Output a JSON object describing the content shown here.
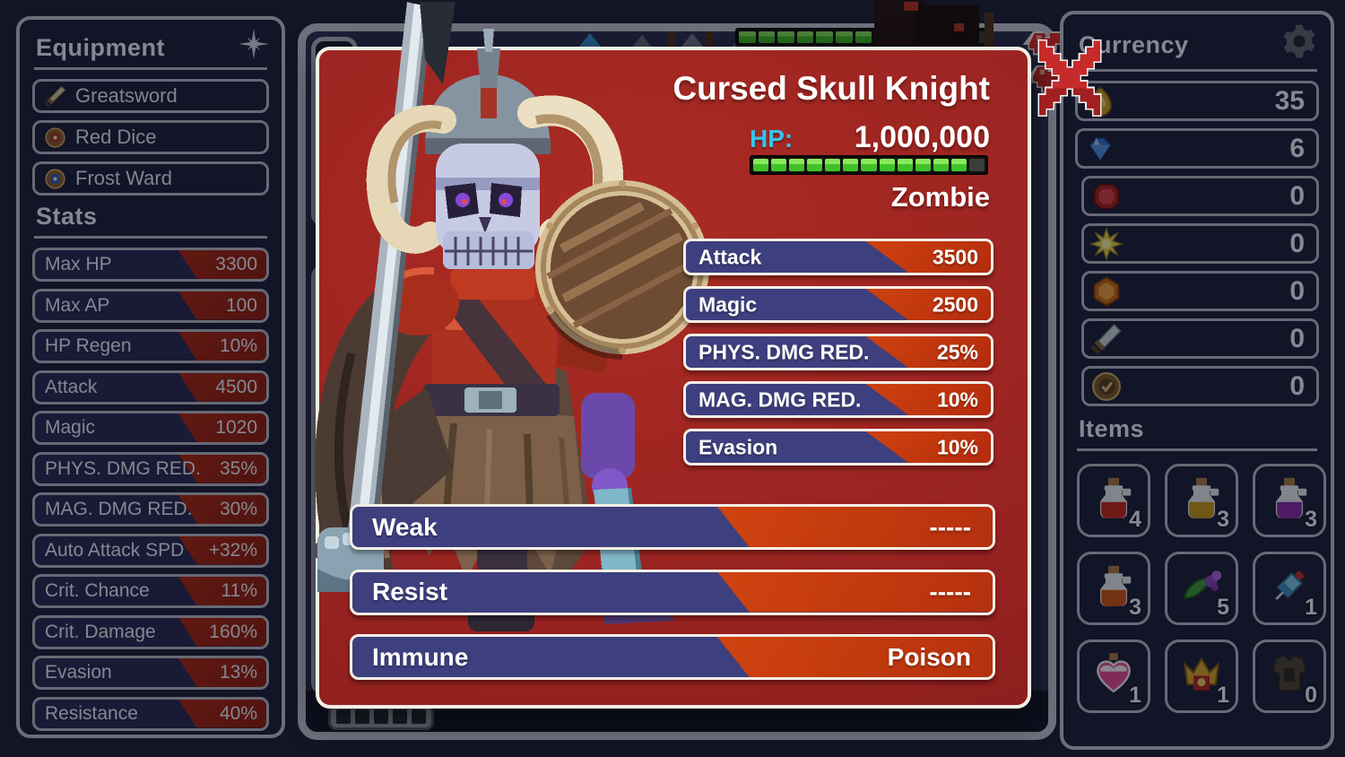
{
  "left_panel": {
    "equipment_title": "Equipment",
    "equipment_icon": "compass-star-icon",
    "equipment": [
      {
        "icon": "greatsword-icon",
        "label": "Greatsword"
      },
      {
        "icon": "red-dice-icon",
        "label": "Red Dice"
      },
      {
        "icon": "frost-ward-icon",
        "label": "Frost Ward"
      }
    ],
    "stats_title": "Stats",
    "stats": [
      {
        "label": "Max HP",
        "value": "3300"
      },
      {
        "label": "Max AP",
        "value": "100"
      },
      {
        "label": "HP Regen",
        "value": "10%"
      },
      {
        "label": "Attack",
        "value": "4500"
      },
      {
        "label": "Magic",
        "value": "1020"
      },
      {
        "label": "PHYS. DMG RED.",
        "value": "35%"
      },
      {
        "label": "MAG. DMG RED.",
        "value": "30%"
      },
      {
        "label": "Auto Attack SPD",
        "value": "+32%"
      },
      {
        "label": "Crit. Chance",
        "value": "11%"
      },
      {
        "label": "Crit. Damage",
        "value": "160%"
      },
      {
        "label": "Evasion",
        "value": "13%"
      },
      {
        "label": "Resistance",
        "value": "40%"
      }
    ]
  },
  "modal": {
    "title": "Cursed Skull Knight",
    "hp_label": "HP:",
    "hp_value": "1,000,000",
    "hp_segments": 13,
    "hp_filled": 12,
    "type": "Zombie",
    "stats": [
      {
        "label": "Attack",
        "value": "3500"
      },
      {
        "label": "Magic",
        "value": "2500"
      },
      {
        "label": "PHYS. DMG RED.",
        "value": "25%"
      },
      {
        "label": "MAG. DMG RED.",
        "value": "10%"
      },
      {
        "label": "Evasion",
        "value": "10%"
      }
    ],
    "traits": [
      {
        "label": "Weak",
        "value": "-----"
      },
      {
        "label": "Resist",
        "value": "-----"
      },
      {
        "label": "Immune",
        "value": "Poison"
      }
    ],
    "close_icon": "close-x-icon"
  },
  "right_panel": {
    "currency_title": "Currency",
    "settings_icon": "gear-icon",
    "currencies": [
      {
        "icon": "gold-nugget-icon",
        "value": "35"
      },
      {
        "icon": "blue-diamond-icon",
        "value": "6"
      },
      {
        "icon": "red-gem-icon",
        "value": "0"
      },
      {
        "icon": "sun-gem-icon",
        "value": "0"
      },
      {
        "icon": "orange-gem-icon",
        "value": "0"
      },
      {
        "icon": "dagger-icon",
        "value": "0"
      },
      {
        "icon": "coin-icon",
        "value": "0"
      }
    ],
    "items_title": "Items",
    "items": [
      {
        "icon": "red-potion-icon",
        "count": "4"
      },
      {
        "icon": "yellow-potion-icon",
        "count": "3"
      },
      {
        "icon": "purple-potion-icon",
        "count": "3"
      },
      {
        "icon": "orange-potion-icon",
        "count": "3"
      },
      {
        "icon": "herb-icon",
        "count": "5"
      },
      {
        "icon": "syringe-icon",
        "count": "1"
      },
      {
        "icon": "heart-potion-icon",
        "count": "1"
      },
      {
        "icon": "crown-armor-icon",
        "count": "1"
      },
      {
        "icon": "dark-armor-icon",
        "count": "0"
      }
    ]
  },
  "scene": {
    "top_hp_segments": 13,
    "top_hp_filled": 12,
    "heart_icon": "life-heart-icon"
  },
  "colors": {
    "accent_orange": "#ef5c10",
    "row_navy": "#3e3f7e",
    "modal_red": "#9b2421",
    "hp_green": "#3fc22a",
    "hp_label_cyan": "#35c3ea",
    "close_red": "#c62a2a",
    "panel_border_gray": "#c2c6d2"
  }
}
